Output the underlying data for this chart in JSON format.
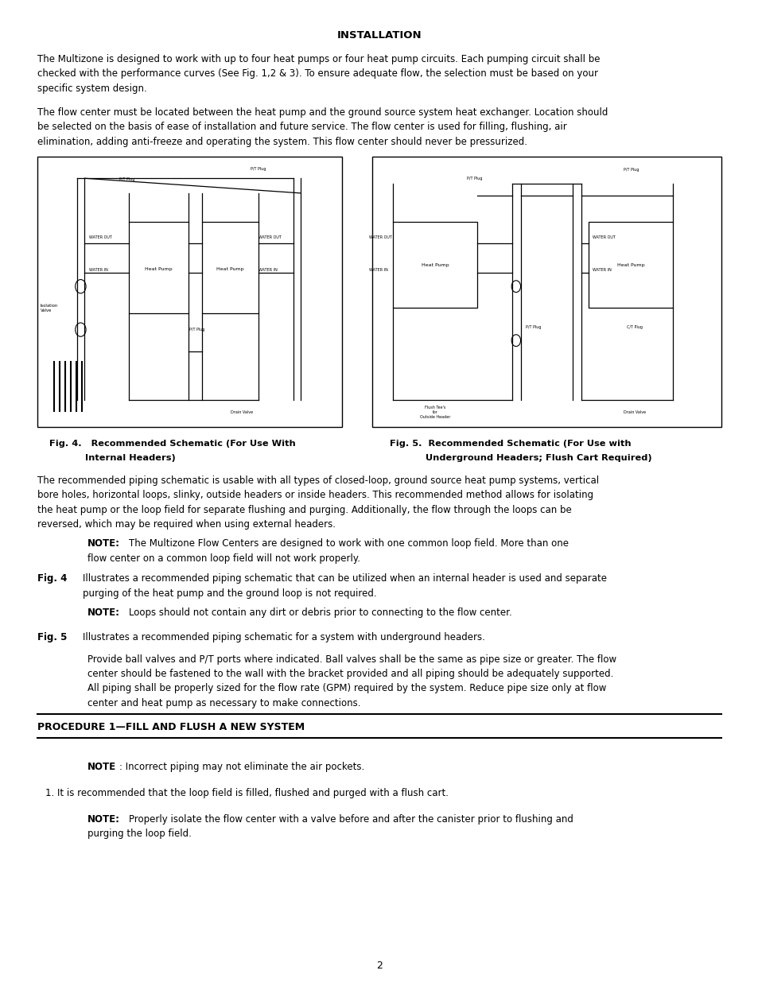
{
  "title": "INSTALLATION",
  "para1_lines": [
    "The Multizone is designed to work with up to four heat pumps or four heat pump circuits. Each pumping circuit shall be",
    "checked with the performance curves (See Fig. 1,2 & 3). To ensure adequate flow, the selection must be based on your",
    "specific system design."
  ],
  "para2_lines": [
    "The flow center must be located between the heat pump and the ground source system heat exchanger. Location should",
    "be selected on the basis of ease of installation and future service. The flow center is used for filling, flushing, air",
    "elimination, adding anti-freeze and operating the system. This flow center should never be pressurized."
  ],
  "fig4_cap1": "Fig. 4.   Recommended Schematic (For Use With",
  "fig4_cap2": "Internal Headers)",
  "fig5_cap1": "Fig. 5.  Recommended Schematic (For Use with",
  "fig5_cap2": "Underground Headers; Flush Cart Required)",
  "para3_lines": [
    "The recommended piping schematic is usable with all types of closed-loop, ground source heat pump systems, vertical",
    "bore holes, horizontal loops, slinky, outside headers or inside headers. This recommended method allows for isolating",
    "the heat pump or the loop field for separate flushing and purging. Additionally, the flow through the loops can be",
    "reversed, which may be required when using external headers."
  ],
  "note1_bold": "NOTE:",
  "note1_line1": "The Multizone Flow Centers are designed to work with one common loop field. More than one",
  "note1_line2": "flow center on a common loop field will not work properly.",
  "fig4_bold": "Fig. 4",
  "fig4_line1": "Illustrates a recommended piping schematic that can be utilized when an internal header is used and separate",
  "fig4_line2": "purging of the heat pump and the ground loop is not required.",
  "note2_bold": "NOTE:",
  "note2_text": "Loops should not contain any dirt or debris prior to connecting to the flow center.",
  "fig5_bold": "Fig. 5",
  "fig5_text": "Illustrates a recommended piping schematic for a system with underground headers.",
  "para4_lines": [
    "Provide ball valves and P/T ports where indicated. Ball valves shall be the same as pipe size or greater. The flow",
    "center should be fastened to the wall with the bracket provided and all piping should be adequately supported.",
    "All piping shall be properly sized for the flow rate (GPM) required by the system. Reduce pipe size only at flow",
    "center and heat pump as necessary to make connections."
  ],
  "proc_title": "PROCEDURE 1—FILL AND FLUSH A NEW SYSTEM",
  "note3_bold": "NOTE",
  "note3_text": ": Incorrect piping may not eliminate the air pockets.",
  "item1": "1. It is recommended that the loop field is filled, flushed and purged with a flush cart.",
  "note4_bold": "NOTE:",
  "note4_line1": "Properly isolate the flow center with a valve before and after the canister prior to flushing and",
  "note4_line2": "purging the loop field.",
  "page_num": "2",
  "bg_color": "#ffffff",
  "text_color": "#000000"
}
